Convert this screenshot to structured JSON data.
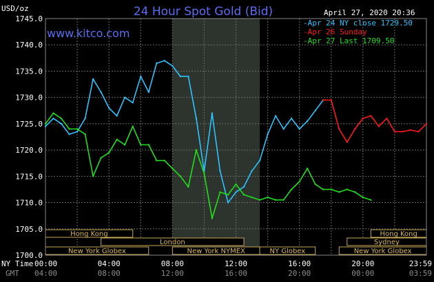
{
  "chart_data": {
    "type": "line",
    "title": "24 Hour Spot Gold (Bid)",
    "website": "www.kitco.com",
    "date_label": "April 27, 2020 20:36",
    "ylabel": "USD/oz",
    "ylim": [
      1700,
      1745
    ],
    "yticks": [
      "1745.0",
      "1740.0",
      "1735.0",
      "1730.0",
      "1725.0",
      "1720.0",
      "1715.0",
      "1710.0",
      "1705.0",
      "1700.0"
    ],
    "grid": true,
    "xlim": [
      0,
      24
    ],
    "x_ticks_ny": [
      "00:00",
      "04:00",
      "08:00",
      "12:00",
      "16:00",
      "20:00",
      "23:59"
    ],
    "x_ticks_gmt": [
      "04:00",
      "08:00",
      "12:00",
      "16:00",
      "20:00",
      "00:00",
      "03:59"
    ],
    "x_row_label_ny": "NY Time",
    "x_row_label_gmt": "GMT",
    "shaded_region": [
      8,
      13.5
    ],
    "legend": [
      {
        "label": "Apr 24 NY close 1729.50",
        "color": "#2ec4ff"
      },
      {
        "label": "Apr 26 Sunday",
        "color": "#ff1a1a"
      },
      {
        "label": "Apr 27 Last 1709.50",
        "color": "#22e01c"
      }
    ],
    "series": [
      {
        "color": "#2ec4ff",
        "x": [
          0,
          0.5,
          1,
          1.5,
          2,
          2.5,
          3,
          3.5,
          4,
          4.5,
          5,
          5.5,
          6,
          6.5,
          7,
          7.5,
          8,
          8.5,
          9,
          9.5,
          10,
          10.5,
          11,
          11.5,
          12,
          12.5,
          13,
          13.5,
          14,
          14.5,
          15,
          15.5,
          16,
          16.5,
          17,
          17.5
        ],
        "y": [
          1724.5,
          1726,
          1725,
          1723,
          1723.5,
          1726,
          1733.5,
          1731,
          1728,
          1726.5,
          1730,
          1729,
          1734,
          1731,
          1736.5,
          1737,
          1736,
          1734,
          1734,
          1726,
          1716,
          1727,
          1716,
          1710,
          1712,
          1713,
          1716,
          1718,
          1723,
          1726.5,
          1724,
          1726,
          1724,
          1725.5,
          1727.5,
          1729.5
        ]
      },
      {
        "color": "#ff1a1a",
        "x": [
          17.5,
          18,
          18.5,
          19,
          19.5,
          20,
          20.5,
          21,
          21.5,
          22,
          22.5,
          23,
          23.5,
          24
        ],
        "y": [
          1729.5,
          1729.5,
          1724,
          1721.5,
          1724,
          1726,
          1726.5,
          1724.5,
          1726,
          1723.5,
          1723.5,
          1723.8,
          1723.5,
          1725
        ]
      },
      {
        "color": "#22e01c",
        "x": [
          0,
          0.5,
          1,
          1.5,
          2,
          2.5,
          3,
          3.5,
          4,
          4.5,
          5,
          5.5,
          6,
          6.5,
          7,
          7.5,
          8,
          8.5,
          9,
          9.5,
          10,
          10.5,
          11,
          11.5,
          12,
          12.5,
          13,
          13.5,
          14,
          14.5,
          15,
          15.5,
          16,
          16.5,
          17,
          17.5,
          18,
          18.5,
          19,
          19.5,
          20,
          20.5
        ],
        "y": [
          1725,
          1727,
          1726,
          1724,
          1724,
          1723,
          1715,
          1718.5,
          1719.5,
          1722,
          1721,
          1724.5,
          1721,
          1721,
          1718,
          1718,
          1716.5,
          1715,
          1713,
          1720,
          1715.5,
          1707,
          1712,
          1711.5,
          1713.5,
          1711.5,
          1711,
          1710.5,
          1711,
          1710.5,
          1710.5,
          1712.5,
          1714,
          1716.5,
          1713.5,
          1712.5,
          1712.5,
          1712,
          1712.5,
          1712,
          1711,
          1710.5
        ]
      }
    ]
  },
  "sessions": [
    {
      "label": "Hong Kong",
      "row": 0,
      "start": 0,
      "end": 5.5
    },
    {
      "label": "London",
      "row": 1,
      "start": 3.5,
      "end": 12.5
    },
    {
      "label": "New York Globex",
      "row": 2,
      "start": 0,
      "end": 6.5
    },
    {
      "label": "New York NYMEX",
      "row": 2,
      "start": 8,
      "end": 13.5
    },
    {
      "label": "NY Globex",
      "row": 2,
      "start": 13.5,
      "end": 17
    },
    {
      "label": "Hong Kong",
      "row": 0,
      "start": 20.5,
      "end": 24
    },
    {
      "label": "Sydney",
      "row": 1,
      "start": 19,
      "end": 24
    },
    {
      "label": "New York Globex",
      "row": 2,
      "start": 18.5,
      "end": 24
    }
  ]
}
